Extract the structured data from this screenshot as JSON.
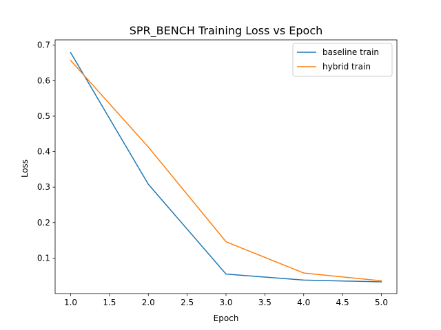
{
  "chart_data": {
    "type": "line",
    "title": "SPR_BENCH Training Loss vs Epoch",
    "xlabel": "Epoch",
    "ylabel": "Loss",
    "xlim": [
      0.8,
      5.2
    ],
    "ylim": [
      0.0,
      0.715
    ],
    "xticks": [
      1.0,
      1.5,
      2.0,
      2.5,
      3.0,
      3.5,
      4.0,
      4.5,
      5.0
    ],
    "xtick_labels": [
      "1.0",
      "1.5",
      "2.0",
      "2.5",
      "3.0",
      "3.5",
      "4.0",
      "4.5",
      "5.0"
    ],
    "yticks": [
      0.1,
      0.2,
      0.3,
      0.4,
      0.5,
      0.6,
      0.7
    ],
    "ytick_labels": [
      "0.1",
      "0.2",
      "0.3",
      "0.4",
      "0.5",
      "0.6",
      "0.7"
    ],
    "grid": false,
    "legend_position": "top-right",
    "x": [
      1,
      2,
      3,
      4,
      5
    ],
    "series": [
      {
        "name": "baseline train",
        "color": "#1f77b4",
        "values": [
          0.679,
          0.308,
          0.055,
          0.038,
          0.033
        ]
      },
      {
        "name": "hybrid train",
        "color": "#ff7f0e",
        "values": [
          0.657,
          0.413,
          0.146,
          0.058,
          0.036
        ]
      }
    ]
  }
}
